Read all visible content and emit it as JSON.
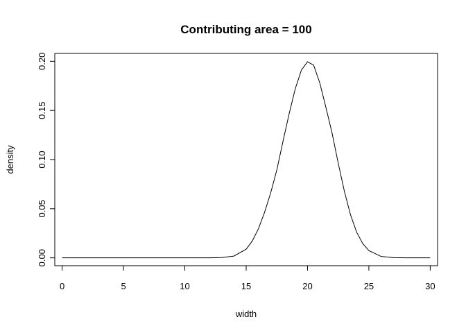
{
  "chart_data": {
    "type": "line",
    "title": "Contributing area = 100",
    "xlabel": "width",
    "ylabel": "density",
    "xlim": [
      -0.6,
      30.6
    ],
    "ylim": [
      -0.008,
      0.208
    ],
    "x_ticks": [
      0,
      5,
      10,
      15,
      20,
      25,
      30
    ],
    "y_ticks": [
      0.0,
      0.05,
      0.1,
      0.15,
      0.2
    ],
    "x_tick_labels": [
      "0",
      "5",
      "10",
      "15",
      "20",
      "25",
      "30"
    ],
    "y_tick_labels": [
      "0.00",
      "0.05",
      "0.10",
      "0.15",
      "0.20"
    ],
    "grid": false,
    "legend": "none",
    "line_color": "#000000",
    "series": [
      {
        "x": [
          0,
          12,
          13,
          14,
          15,
          15.5,
          16,
          16.5,
          17,
          17.5,
          18,
          18.5,
          19,
          19.5,
          20,
          20.5,
          21,
          21.5,
          22,
          22.5,
          23,
          23.5,
          24,
          24.5,
          25,
          26,
          27,
          28,
          30
        ],
        "values": [
          0.0,
          0.0,
          0.0003,
          0.0018,
          0.0088,
          0.0172,
          0.0296,
          0.0463,
          0.0662,
          0.0895,
          0.1185,
          0.1465,
          0.172,
          0.191,
          0.1995,
          0.196,
          0.178,
          0.153,
          0.127,
          0.0965,
          0.068,
          0.044,
          0.0262,
          0.0145,
          0.0074,
          0.0014,
          0.0002,
          0.0,
          0.0
        ]
      }
    ]
  }
}
